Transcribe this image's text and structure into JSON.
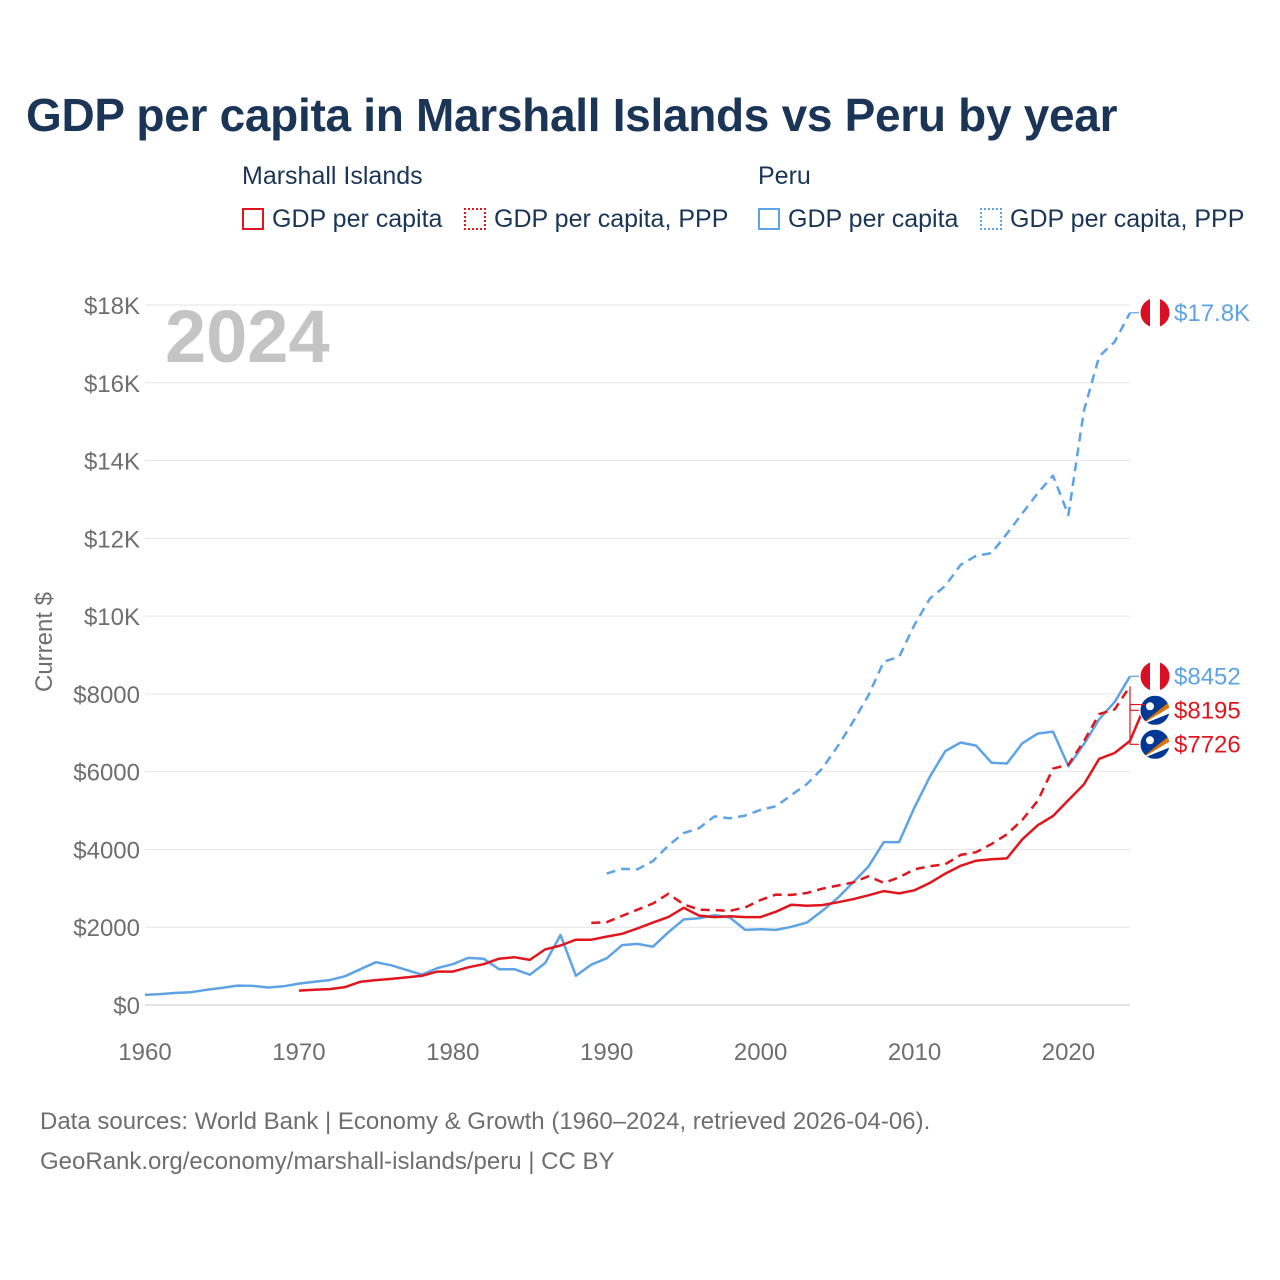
{
  "title": "GDP per capita in Marshall Islands vs Peru by year",
  "legend": {
    "groups": [
      {
        "name": "Marshall Islands",
        "items": [
          "GDP per capita",
          "GDP per capita, PPP"
        ]
      },
      {
        "name": "Peru",
        "items": [
          "GDP per capita",
          "GDP per capita, PPP"
        ]
      }
    ]
  },
  "year_label": "2024",
  "footer": {
    "line1": "Data sources: World Bank | Economy & Growth (1960–2024, retrieved 2026-04-06).",
    "line2": "GeoRank.org/economy/marshall-islands/peru | CC BY"
  },
  "colors": {
    "marshall": "#e0161e",
    "peru": "#5da3e6",
    "grid": "#e6e6e6",
    "axis_text": "#6e6e6e",
    "year": "#c4c4c4"
  },
  "chart_data": {
    "type": "line",
    "title": "GDP per capita in Marshall Islands vs Peru by year",
    "xlabel": "",
    "ylabel": "Current $",
    "xlim": [
      1960,
      2024
    ],
    "ylim": [
      0,
      18000
    ],
    "x_ticks": [
      1960,
      1970,
      1980,
      1990,
      2000,
      2010,
      2020
    ],
    "x_tick_labels": [
      "1960",
      "1970",
      "1980",
      "1990",
      "2000",
      "2010",
      "2020"
    ],
    "y_ticks": [
      0,
      2000,
      4000,
      6000,
      8000,
      10000,
      12000,
      14000,
      16000,
      18000
    ],
    "y_tick_labels": [
      "$0",
      "$2000",
      "$4000",
      "$6000",
      "$8000",
      "$10K",
      "$12K",
      "$14K",
      "$16K",
      "$18K"
    ],
    "grid": true,
    "series": [
      {
        "name": "Peru GDP per capita, PPP",
        "country": "Peru",
        "style": "dashed",
        "start_year": 1990,
        "values": [
          3380,
          3500,
          3490,
          3700,
          4100,
          4420,
          4550,
          4850,
          4800,
          4870,
          5020,
          5110,
          5400,
          5680,
          6080,
          6650,
          7280,
          7960,
          8830,
          8950,
          9780,
          10450,
          10780,
          11320,
          11550,
          11620,
          12120,
          12640,
          13160,
          13610,
          12600,
          15270,
          16680,
          17050,
          17800
        ],
        "end_label": "$17.8K"
      },
      {
        "name": "Peru GDP per capita",
        "country": "Peru",
        "style": "solid",
        "start_year": 1960,
        "values": [
          260,
          280,
          310,
          330,
          390,
          440,
          500,
          490,
          450,
          480,
          550,
          600,
          640,
          740,
          920,
          1100,
          1020,
          900,
          780,
          950,
          1050,
          1210,
          1190,
          920,
          920,
          780,
          1080,
          1800,
          750,
          1040,
          1200,
          1540,
          1570,
          1500,
          1870,
          2200,
          2230,
          2310,
          2250,
          1930,
          1950,
          1930,
          2010,
          2120,
          2420,
          2750,
          3150,
          3560,
          4190,
          4190,
          5080,
          5870,
          6530,
          6750,
          6670,
          6230,
          6210,
          6730,
          6980,
          7030,
          6140,
          6700,
          7350,
          7790,
          8452
        ],
        "end_label": "$8452"
      },
      {
        "name": "Marshall Islands GDP per capita, PPP",
        "country": "Marshall Islands",
        "style": "dashed",
        "start_year": 1989,
        "values": [
          2110,
          2130,
          2290,
          2450,
          2610,
          2860,
          2590,
          2450,
          2440,
          2420,
          2510,
          2700,
          2840,
          2830,
          2880,
          2990,
          3070,
          3150,
          3310,
          3140,
          3280,
          3490,
          3570,
          3620,
          3860,
          3930,
          4140,
          4390,
          4760,
          5250,
          6080,
          6180,
          6780,
          7480,
          7600,
          8195
        ],
        "end_label": "$8195"
      },
      {
        "name": "Marshall Islands GDP per capita",
        "country": "Marshall Islands",
        "style": "solid",
        "start_year": 1970,
        "values": [
          370,
          390,
          410,
          460,
          600,
          640,
          670,
          710,
          750,
          860,
          860,
          970,
          1050,
          1190,
          1230,
          1160,
          1430,
          1530,
          1680,
          1680,
          1760,
          1830,
          1970,
          2120,
          2260,
          2500,
          2300,
          2260,
          2280,
          2260,
          2260,
          2400,
          2580,
          2550,
          2570,
          2640,
          2720,
          2820,
          2930,
          2870,
          2950,
          3140,
          3380,
          3580,
          3710,
          3750,
          3770,
          4260,
          4620,
          4860,
          5270,
          5670,
          6330,
          6480,
          6790,
          7726
        ],
        "end_label": "$7726"
      }
    ]
  }
}
